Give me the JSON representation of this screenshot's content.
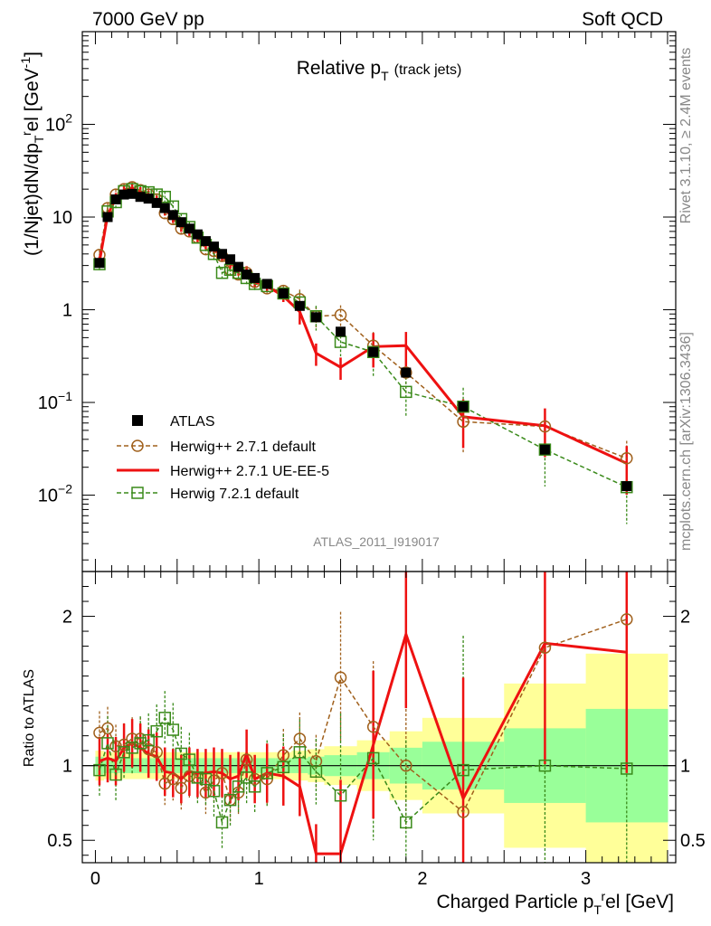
{
  "header": {
    "left": "7000 GeV pp",
    "right": "Soft QCD"
  },
  "side_labels": {
    "rivet": "Rivet 3.1.10, ≥ 2.4M events",
    "mcplots": "mcplots.cern.ch [arXiv:1306.3436]"
  },
  "colors": {
    "atlas": "#000000",
    "herwig_default": "#a0601c",
    "herwig_ueee5": "#ee1111",
    "herwig72": "#3a8a1a",
    "band_inner": "#99ff99",
    "band_outer": "#ffff99"
  },
  "chart_data": [
    {
      "type": "scatter",
      "title": "Relative p_T (track jets)",
      "title_parts": {
        "main": "Relative p",
        "sub": "T",
        "note": "(track jets)"
      },
      "ylabel": "(1/Njet)dN/dp_T^rel [GeV^-1]",
      "ylabel_parts": {
        "pre": "(1/Njet)dN/dp",
        "sub": "T",
        "sup1": "r",
        "mid": "el [GeV",
        "sup2": "-1",
        "post": "]"
      },
      "yscale": "log",
      "ylim": [
        0.0015,
        1000
      ],
      "xlim": [
        -0.08,
        3.55
      ],
      "ytick_labels": [
        "10^-2",
        "10^-1",
        "1",
        "10",
        "10^2"
      ],
      "watermark": "ATLAS_2011_I919017",
      "legend_position": "bottom-left",
      "legend": [
        {
          "label": "ATLAS",
          "style": "filled-square"
        },
        {
          "label": "Herwig++ 2.7.1 default",
          "style": "dashed-open-circle"
        },
        {
          "label": "Herwig++ 2.7.1 UE-EE-5",
          "style": "solid-line"
        },
        {
          "label": "Herwig 7.2.1 default",
          "style": "dashed-open-square"
        }
      ],
      "series": [
        {
          "name": "ATLAS",
          "x": [
            0.025,
            0.075,
            0.125,
            0.175,
            0.225,
            0.275,
            0.325,
            0.375,
            0.425,
            0.475,
            0.525,
            0.575,
            0.625,
            0.675,
            0.725,
            0.775,
            0.825,
            0.875,
            0.925,
            0.975,
            1.05,
            1.15,
            1.25,
            1.35,
            1.5,
            1.7,
            1.9,
            2.25,
            2.75,
            3.25
          ],
          "y": [
            3.2,
            10.0,
            15.5,
            17.5,
            17.8,
            16.5,
            15.8,
            14.2,
            12.5,
            10.5,
            8.8,
            7.5,
            6.5,
            5.5,
            4.8,
            4.0,
            3.5,
            2.9,
            2.4,
            2.2,
            1.9,
            1.5,
            1.1,
            0.83,
            0.58,
            0.35,
            0.21,
            0.09,
            0.031,
            0.0125
          ]
        },
        {
          "name": "Herwig++ 2.7.1 default",
          "x": [
            0.025,
            0.075,
            0.125,
            0.175,
            0.225,
            0.275,
            0.325,
            0.375,
            0.425,
            0.475,
            0.525,
            0.575,
            0.625,
            0.675,
            0.725,
            0.775,
            0.825,
            0.875,
            0.925,
            0.975,
            1.05,
            1.15,
            1.25,
            1.35,
            1.5,
            1.7,
            1.9,
            2.25,
            2.75,
            3.25
          ],
          "y": [
            3.9,
            12.5,
            17.5,
            20.0,
            21.0,
            19.5,
            17.5,
            15.5,
            11.0,
            9.5,
            7.5,
            7.0,
            6.0,
            4.5,
            4.3,
            3.8,
            2.7,
            2.4,
            2.5,
            2.0,
            1.7,
            1.6,
            1.3,
            0.85,
            0.88,
            0.41,
            0.21,
            0.062,
            0.055,
            0.025
          ]
        },
        {
          "name": "Herwig++ 2.7.1 UE-EE-5",
          "x": [
            0.025,
            0.075,
            0.125,
            0.175,
            0.225,
            0.275,
            0.325,
            0.375,
            0.425,
            0.475,
            0.525,
            0.575,
            0.625,
            0.675,
            0.725,
            0.775,
            0.825,
            0.875,
            0.925,
            0.975,
            1.05,
            1.15,
            1.25,
            1.35,
            1.5,
            1.7,
            1.9,
            2.25,
            2.75,
            3.25
          ],
          "y": [
            3.3,
            10.5,
            16.0,
            19.5,
            20.5,
            18.5,
            17.0,
            15.0,
            12.0,
            10.0,
            8.0,
            7.2,
            6.2,
            5.2,
            4.6,
            3.8,
            3.2,
            2.7,
            2.6,
            2.0,
            1.8,
            1.4,
            0.95,
            0.34,
            0.24,
            0.4,
            0.41,
            0.07,
            0.056,
            0.022
          ]
        },
        {
          "name": "Herwig 7.2.1 default",
          "x": [
            0.025,
            0.075,
            0.125,
            0.175,
            0.225,
            0.275,
            0.325,
            0.375,
            0.425,
            0.475,
            0.525,
            0.575,
            0.625,
            0.675,
            0.725,
            0.775,
            0.825,
            0.875,
            0.925,
            0.975,
            1.05,
            1.15,
            1.25,
            1.35,
            1.5,
            1.7,
            1.9,
            2.25,
            2.75,
            3.25
          ],
          "y": [
            3.1,
            11.5,
            14.5,
            19.0,
            20.0,
            19.0,
            18.5,
            17.5,
            16.5,
            13.0,
            9.5,
            7.8,
            6.0,
            5.0,
            4.0,
            2.5,
            2.7,
            2.5,
            2.2,
            1.9,
            1.8,
            1.5,
            1.2,
            0.85,
            0.45,
            0.35,
            0.13,
            0.09,
            0.031,
            0.0122
          ]
        }
      ]
    },
    {
      "type": "scatter",
      "ylabel": "Ratio to ATLAS",
      "xlabel": "Charged Particle p_T^rel [GeV]",
      "xlabel_parts": {
        "pre": "Charged Particle p",
        "sub": "T",
        "sup": "r",
        "post": "el [GeV]"
      },
      "ylim": [
        0.35,
        2.3
      ],
      "xlim": [
        -0.08,
        3.55
      ],
      "xtick_labels": [
        "0",
        "1",
        "2",
        "3"
      ],
      "ytick_labels": [
        "0.5",
        "1",
        "2"
      ],
      "reference_line": 1,
      "band_edges": [
        0.0,
        0.05,
        0.1,
        0.15,
        0.2,
        0.25,
        0.3,
        0.35,
        0.4,
        0.45,
        0.5,
        0.55,
        0.6,
        0.65,
        0.7,
        0.75,
        0.8,
        0.85,
        0.9,
        0.95,
        1.0,
        1.1,
        1.2,
        1.3,
        1.4,
        1.6,
        1.8,
        2.0,
        2.5,
        3.0,
        3.5
      ],
      "band_inner": [
        0.06,
        0.05,
        0.05,
        0.05,
        0.05,
        0.05,
        0.05,
        0.05,
        0.05,
        0.05,
        0.05,
        0.05,
        0.05,
        0.05,
        0.05,
        0.05,
        0.05,
        0.05,
        0.05,
        0.05,
        0.05,
        0.05,
        0.05,
        0.06,
        0.07,
        0.09,
        0.12,
        0.16,
        0.25,
        0.38
      ],
      "band_outer": [
        0.1,
        0.09,
        0.09,
        0.09,
        0.09,
        0.09,
        0.09,
        0.09,
        0.09,
        0.09,
        0.09,
        0.09,
        0.09,
        0.09,
        0.09,
        0.09,
        0.09,
        0.09,
        0.09,
        0.09,
        0.09,
        0.09,
        0.1,
        0.11,
        0.13,
        0.17,
        0.23,
        0.32,
        0.55,
        0.75
      ],
      "series": [
        {
          "name": "Herwig++ 2.7.1 default",
          "x": [
            0.025,
            0.075,
            0.125,
            0.175,
            0.225,
            0.275,
            0.325,
            0.375,
            0.425,
            0.475,
            0.525,
            0.575,
            0.625,
            0.675,
            0.725,
            0.775,
            0.825,
            0.875,
            0.925,
            0.975,
            1.05,
            1.15,
            1.25,
            1.35,
            1.5,
            1.7,
            1.9,
            2.25,
            2.75,
            3.25
          ],
          "y": [
            1.22,
            1.25,
            1.13,
            1.14,
            1.18,
            1.18,
            1.11,
            1.09,
            0.88,
            0.91,
            0.85,
            0.93,
            0.92,
            0.82,
            0.9,
            0.95,
            0.77,
            0.82,
            1.04,
            0.91,
            0.91,
            1.07,
            1.18,
            1.03,
            1.59,
            1.26,
            1.0,
            0.69,
            1.79,
            1.98
          ]
        },
        {
          "name": "Herwig++ 2.7.1 UE-EE-5",
          "x": [
            0.025,
            0.075,
            0.125,
            0.175,
            0.225,
            0.275,
            0.325,
            0.375,
            0.425,
            0.475,
            0.525,
            0.575,
            0.625,
            0.675,
            0.725,
            0.775,
            0.825,
            0.875,
            0.925,
            0.975,
            1.05,
            1.15,
            1.25,
            1.35,
            1.5,
            1.7,
            1.9,
            2.25,
            2.75,
            3.25
          ],
          "y": [
            1.03,
            1.05,
            1.03,
            1.12,
            1.15,
            1.12,
            1.08,
            1.06,
            0.96,
            0.95,
            0.91,
            0.96,
            0.95,
            0.95,
            0.96,
            0.95,
            0.91,
            0.93,
            1.08,
            0.91,
            0.95,
            0.93,
            0.86,
            0.41,
            0.41,
            1.14,
            1.88,
            0.78,
            1.82,
            1.76
          ]
        },
        {
          "name": "Herwig 7.2.1 default",
          "x": [
            0.025,
            0.075,
            0.125,
            0.175,
            0.225,
            0.275,
            0.325,
            0.375,
            0.425,
            0.475,
            0.525,
            0.575,
            0.625,
            0.675,
            0.725,
            0.775,
            0.825,
            0.875,
            0.925,
            0.975,
            1.05,
            1.15,
            1.25,
            1.35,
            1.5,
            1.7,
            1.9,
            2.25,
            2.75,
            3.25
          ],
          "y": [
            0.97,
            1.15,
            0.94,
            1.09,
            1.12,
            1.15,
            1.17,
            1.23,
            1.32,
            1.24,
            1.08,
            1.04,
            0.92,
            0.91,
            0.83,
            0.62,
            0.77,
            0.86,
            0.92,
            0.86,
            0.95,
            0.99,
            1.09,
            0.96,
            0.8,
            1.05,
            0.62,
            0.97,
            1.0,
            0.98
          ]
        }
      ]
    }
  ]
}
